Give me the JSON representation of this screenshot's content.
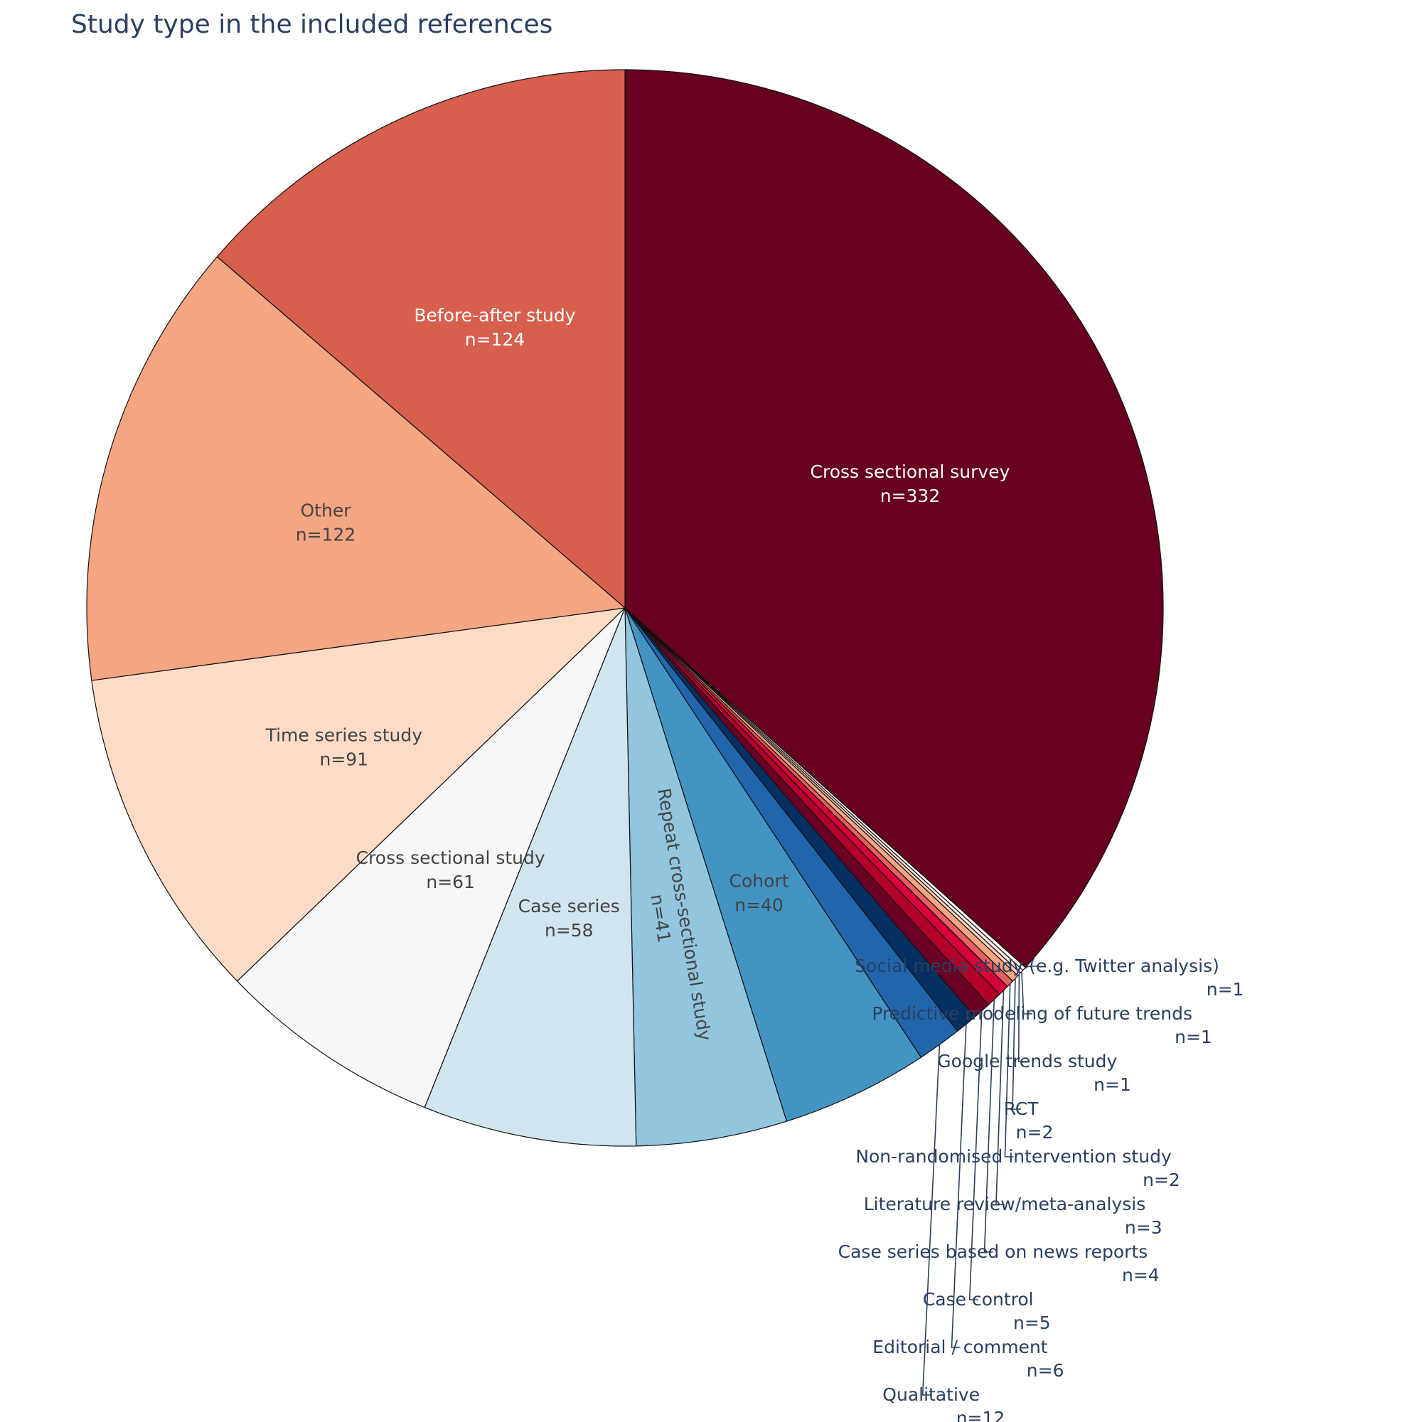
{
  "chart_data": {
    "type": "pie",
    "title": "Study type in the included references",
    "direction": "clockwise",
    "start": "top",
    "slices": [
      {
        "label": "Cross sectional survey",
        "value": 332,
        "text": "n=332",
        "color": "#67001f",
        "label_color": "#ffffff"
      },
      {
        "label": "Social media study (e.g. Twitter analysis)",
        "value": 1,
        "text": "n=1",
        "color": "#ffffff",
        "label_color": "#2a3f5f"
      },
      {
        "label": "Predictive modeling of future trends",
        "value": 1,
        "text": "n=1",
        "color": "#fce8e0",
        "label_color": "#2a3f5f"
      },
      {
        "label": "Google trends study",
        "value": 1,
        "text": "n=1",
        "color": "#fbd0be",
        "label_color": "#2a3f5f"
      },
      {
        "label": "RCT",
        "value": 2,
        "text": "n=2",
        "color": "#f4a582",
        "label_color": "#2a3f5f"
      },
      {
        "label": "Non-randomised intervention study",
        "value": 2,
        "text": "n=2",
        "color": "#e8605f",
        "label_color": "#2a3f5f"
      },
      {
        "label": "Literature review/meta-analysis",
        "value": 3,
        "text": "n=3",
        "color": "#d6003a",
        "label_color": "#2a3f5f"
      },
      {
        "label": "Case series based on news reports",
        "value": 4,
        "text": "n=4",
        "color": "#b2002a",
        "label_color": "#2a3f5f"
      },
      {
        "label": "Case control",
        "value": 5,
        "text": "n=5",
        "color": "#6b0025",
        "label_color": "#2a3f5f"
      },
      {
        "label": "Editorial / comment",
        "value": 6,
        "text": "n=6",
        "color": "#053061",
        "label_color": "#2a3f5f"
      },
      {
        "label": "Qualitative",
        "value": 12,
        "text": "n=12",
        "color": "#2166ac",
        "label_color": "#2a3f5f"
      },
      {
        "label": "Cohort",
        "value": 40,
        "text": "n=40",
        "color": "#4393c3",
        "label_color": "#444444"
      },
      {
        "label": "Repeat cross-sectional study",
        "value": 41,
        "text": "n=41",
        "color": "#92c5de",
        "label_color": "#444444"
      },
      {
        "label": "Case series",
        "value": 58,
        "text": "n=58",
        "color": "#d1e5f0",
        "label_color": "#444444"
      },
      {
        "label": "Cross sectional study",
        "value": 61,
        "text": "n=61",
        "color": "#f7f7f7",
        "label_color": "#444444"
      },
      {
        "label": "Time series study",
        "value": 91,
        "text": "n=91",
        "color": "#fddbc7",
        "label_color": "#444444"
      },
      {
        "label": "Other",
        "value": 122,
        "text": "n=122",
        "color": "#f4a582",
        "label_color": "#444444"
      },
      {
        "label": "Before-after study",
        "value": 124,
        "text": "n=124",
        "color": "#d6604d",
        "label_color": "#ffffff"
      }
    ]
  }
}
